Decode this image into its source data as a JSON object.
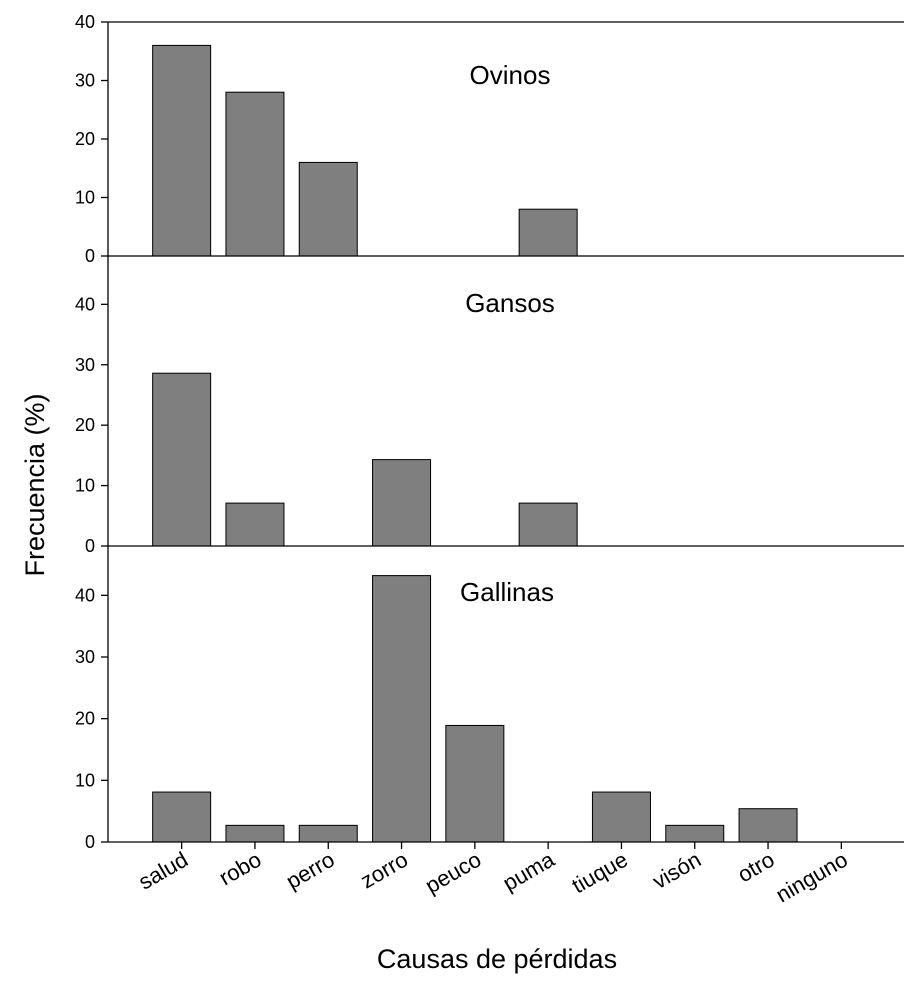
{
  "chart_data": {
    "type": "bar",
    "xlabel": "Causas de pérdidas",
    "ylabel": "Frecuencia (%)",
    "categories": [
      "salud",
      "robo",
      "perro",
      "zorro",
      "peuco",
      "puma",
      "tiuque",
      "visón",
      "otro",
      "ninguno"
    ],
    "panels": [
      {
        "name": "Ovinos",
        "values": [
          36,
          28,
          16,
          0,
          0,
          8,
          0,
          0,
          0,
          0
        ],
        "ylim": [
          0,
          40
        ],
        "yticks": [
          0,
          10,
          20,
          30,
          40
        ]
      },
      {
        "name": "Gansos",
        "values": [
          28.6,
          7.1,
          0,
          14.3,
          0,
          7.1,
          0,
          0,
          0,
          0
        ],
        "ylim": [
          0,
          48
        ],
        "yticks": [
          0,
          10,
          20,
          30,
          40
        ]
      },
      {
        "name": "Gallinas",
        "values": [
          8.1,
          2.7,
          2.7,
          43.2,
          18.9,
          0,
          8.1,
          2.7,
          5.4,
          0
        ],
        "ylim": [
          0,
          48
        ],
        "yticks": [
          0,
          10,
          20,
          30,
          40
        ]
      }
    ],
    "bar_color": "#7f7f7f",
    "grid": false,
    "legend": "none"
  }
}
